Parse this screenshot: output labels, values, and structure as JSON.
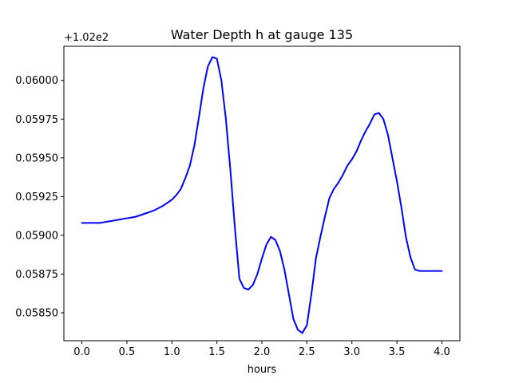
{
  "chart_data": {
    "type": "line",
    "title": "Water Depth h at gauge 135",
    "xlabel": "hours",
    "ylabel": "",
    "y_offset_label": "+1.02e2",
    "y_offset": 102,
    "xlim": [
      -0.2,
      4.2
    ],
    "ylim": [
      0.05832,
      0.06022
    ],
    "x_ticks": [
      0.0,
      0.5,
      1.0,
      1.5,
      2.0,
      2.5,
      3.0,
      3.5,
      4.0
    ],
    "x_tick_labels": [
      "0.0",
      "0.5",
      "1.0",
      "1.5",
      "2.0",
      "2.5",
      "3.0",
      "3.5",
      "4.0"
    ],
    "y_ticks": [
      0.0585,
      0.05875,
      0.059,
      0.05925,
      0.0595,
      0.05975,
      0.06
    ],
    "y_tick_labels": [
      "0.05850",
      "0.05875",
      "0.05900",
      "0.05925",
      "0.05950",
      "0.05975",
      "0.06000"
    ],
    "grid": false,
    "legend": "none",
    "series": [
      {
        "color": "#0000ff",
        "x": [
          0.0,
          0.1,
          0.2,
          0.25,
          0.3,
          0.4,
          0.5,
          0.6,
          0.7,
          0.75,
          0.8,
          0.9,
          1.0,
          1.05,
          1.1,
          1.15,
          1.2,
          1.25,
          1.3,
          1.35,
          1.4,
          1.45,
          1.5,
          1.55,
          1.6,
          1.65,
          1.7,
          1.75,
          1.8,
          1.85,
          1.9,
          1.95,
          2.0,
          2.05,
          2.1,
          2.15,
          2.2,
          2.25,
          2.3,
          2.35,
          2.4,
          2.45,
          2.5,
          2.55,
          2.6,
          2.65,
          2.7,
          2.75,
          2.8,
          2.85,
          2.9,
          2.95,
          3.0,
          3.05,
          3.1,
          3.15,
          3.2,
          3.25,
          3.3,
          3.35,
          3.4,
          3.45,
          3.5,
          3.55,
          3.6,
          3.65,
          3.7,
          3.75,
          3.8,
          3.85,
          3.9,
          3.95,
          4.0
        ],
        "y": [
          0.05908,
          0.05908,
          0.05908,
          0.059085,
          0.05909,
          0.0591,
          0.05911,
          0.05912,
          0.05914,
          0.05915,
          0.05916,
          0.05919,
          0.05923,
          0.05926,
          0.0593,
          0.05937,
          0.05945,
          0.05958,
          0.05976,
          0.05995,
          0.06009,
          0.06015,
          0.06014,
          0.06,
          0.05975,
          0.05942,
          0.05905,
          0.05872,
          0.05866,
          0.05865,
          0.05868,
          0.05875,
          0.05885,
          0.05894,
          0.05899,
          0.05897,
          0.0589,
          0.05878,
          0.05862,
          0.05846,
          0.05839,
          0.05837,
          0.05842,
          0.05862,
          0.05885,
          0.05899,
          0.05912,
          0.05924,
          0.0593,
          0.05934,
          0.05939,
          0.05945,
          0.05949,
          0.05954,
          0.05961,
          0.05967,
          0.05972,
          0.05978,
          0.05979,
          0.05975,
          0.05965,
          0.0595,
          0.05935,
          0.05918,
          0.05899,
          0.05886,
          0.05878,
          0.05877,
          0.05877,
          0.05877,
          0.05877,
          0.05877,
          0.05877
        ]
      }
    ]
  }
}
